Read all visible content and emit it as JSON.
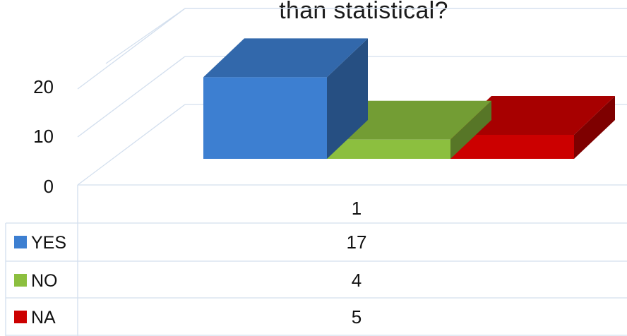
{
  "chart_data": {
    "type": "bar",
    "title": "than statistical?",
    "xlabel": "",
    "ylabel": "",
    "categories": [
      "1"
    ],
    "ylim": [
      0,
      20
    ],
    "yticks": [
      0,
      10,
      20
    ],
    "grid": true,
    "legend_position": "data-table",
    "series": [
      {
        "name": "YES",
        "values": [
          17
        ],
        "color": "#3d7fd1"
      },
      {
        "name": "NO",
        "values": [
          4
        ],
        "color": "#8cbf3f"
      },
      {
        "name": "NA",
        "values": [
          5
        ],
        "color": "#cc0000"
      }
    ]
  }
}
